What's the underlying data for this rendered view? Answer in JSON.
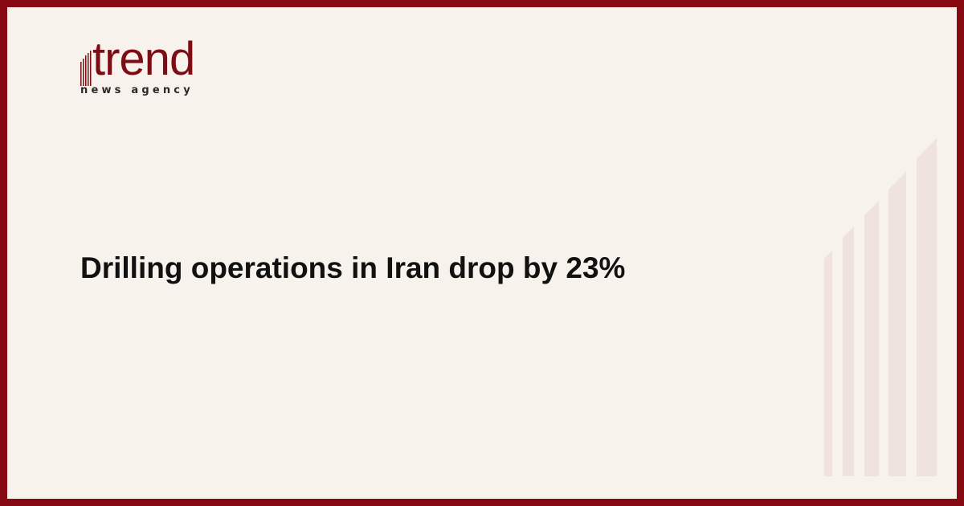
{
  "brand": {
    "name": "trend",
    "tagline": "news agency",
    "color": "#870911"
  },
  "headline": "Drilling operations in Iran drop by 23%",
  "colors": {
    "background": "#f7f2ec",
    "border": "#870911",
    "decor_bars": "#f0e1de"
  },
  "decor_icon": "rising-bars-watermark"
}
